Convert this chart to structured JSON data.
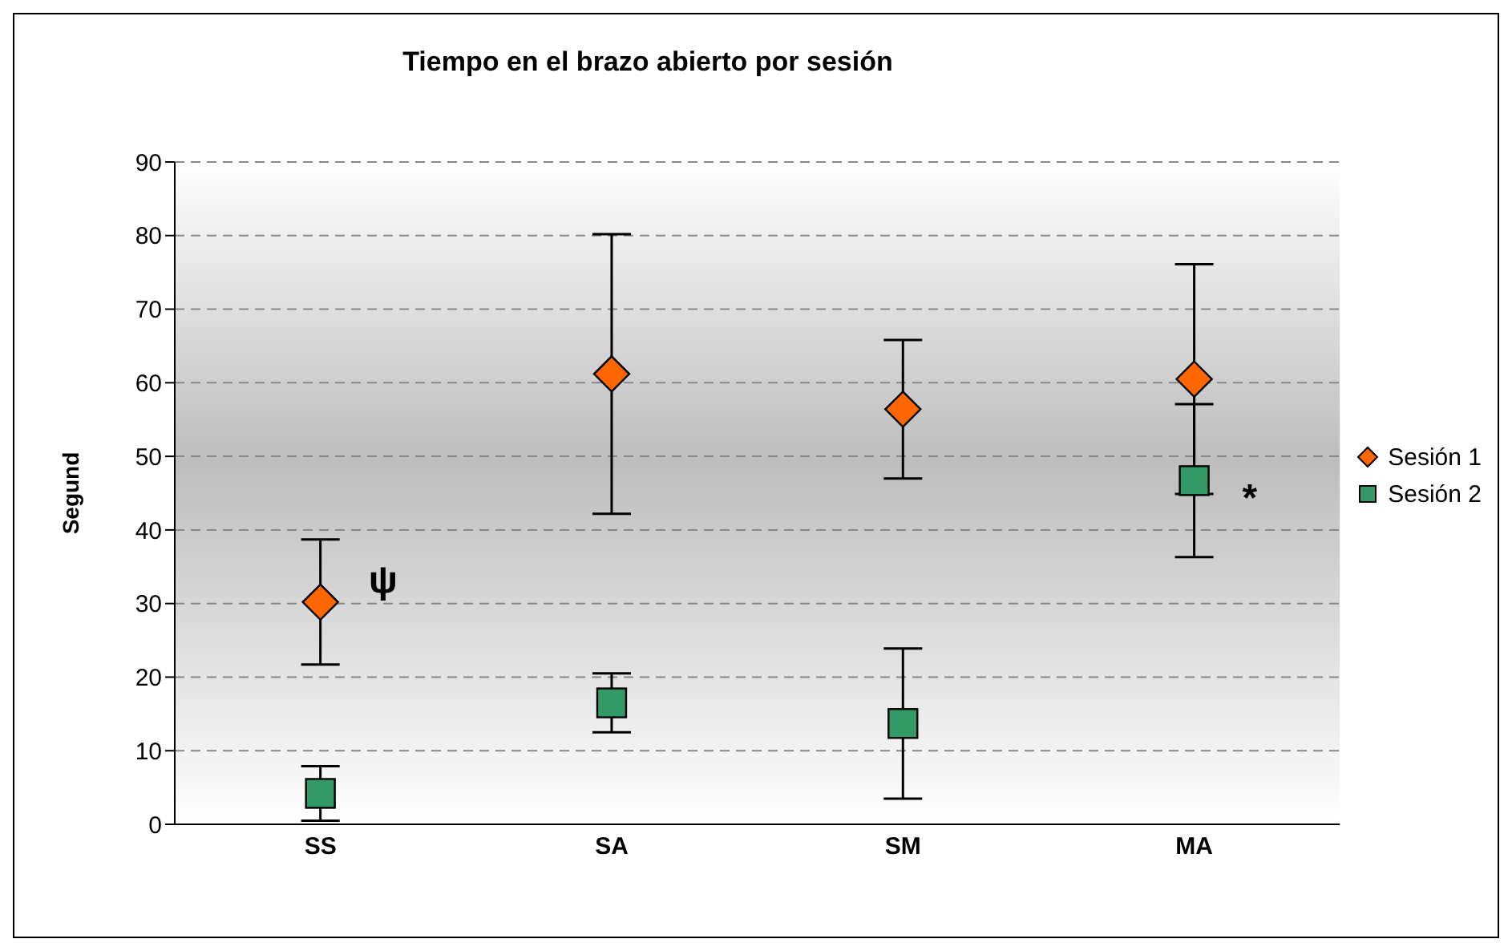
{
  "chart_data": {
    "type": "scatter",
    "title": "Tiempo en el brazo abierto por sesión",
    "ylabel": "Segund",
    "categories": [
      "SS",
      "SA",
      "SM",
      "MA"
    ],
    "series": [
      {
        "name": "Sesión 1",
        "color": "#ff6600",
        "marker": "diamond",
        "values": [
          30.2,
          61.2,
          56.4,
          60.5
        ],
        "errors": [
          8.5,
          19,
          9.4,
          15.6
        ]
      },
      {
        "name": "Sesión 2",
        "color": "#339966",
        "marker": "square",
        "values": [
          4.2,
          16.5,
          13.7,
          46.7
        ],
        "errors": [
          3.7,
          4,
          10.2,
          10.4
        ]
      }
    ],
    "ylim": [
      0,
      90
    ],
    "yticks": [
      0,
      10,
      20,
      30,
      40,
      50,
      60,
      70,
      80,
      90
    ],
    "grid": "y",
    "legend": "right",
    "annotations": [
      {
        "text": "ψ",
        "x": "SS",
        "y": 33.3
      },
      {
        "text": "*",
        "x": "MA",
        "y": 44.5
      }
    ]
  }
}
